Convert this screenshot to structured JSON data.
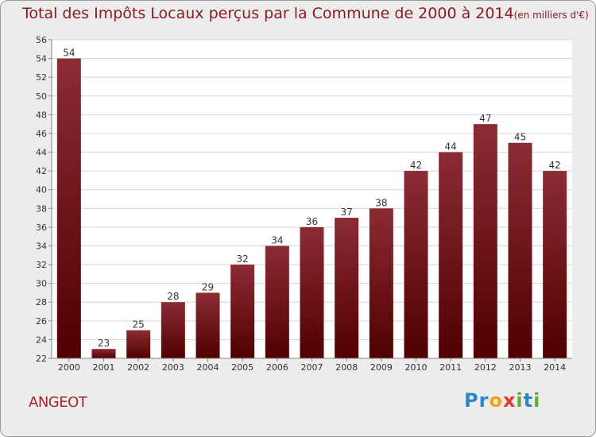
{
  "title": "Total des Impôts Locaux perçus par la Commune de 2000 à 2014",
  "title_unit": "(en milliers d'€)",
  "commune": "ANGEOT",
  "brand": {
    "name": "Proxiti",
    "letters": [
      "P",
      "r",
      "o",
      "x",
      "i",
      "t",
      "i"
    ]
  },
  "colors": {
    "bar_top": "#8c2b34",
    "bar_bottom": "#4f0000",
    "title": "#8a1c22",
    "grid": "#d6d6d6",
    "background": "#ececec"
  },
  "chart_data": {
    "type": "bar",
    "title": "Total des Impôts Locaux perçus par la Commune de 2000 à 2014",
    "xlabel": "",
    "ylabel": "",
    "categories": [
      "2000",
      "2001",
      "2002",
      "2003",
      "2004",
      "2005",
      "2006",
      "2007",
      "2008",
      "2009",
      "2010",
      "2011",
      "2012",
      "2013",
      "2014"
    ],
    "values": [
      54,
      23,
      25,
      28,
      29,
      32,
      34,
      36,
      37,
      38,
      42,
      44,
      47,
      45,
      42
    ],
    "ylim": [
      22,
      56
    ],
    "yticks": [
      22,
      24,
      26,
      28,
      30,
      32,
      34,
      36,
      38,
      40,
      42,
      44,
      46,
      48,
      50,
      52,
      54,
      56
    ],
    "grid": true,
    "data_labels": true
  }
}
